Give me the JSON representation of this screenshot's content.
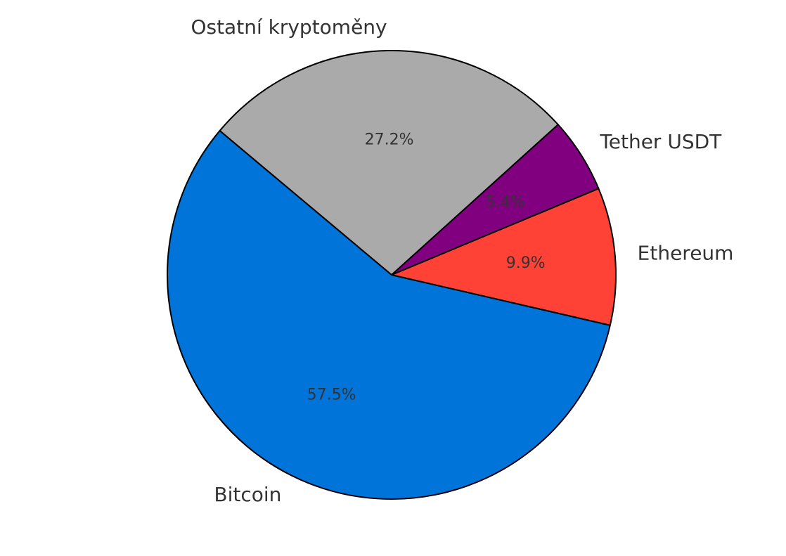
{
  "chart_data": {
    "type": "pie",
    "categories": [
      "Bitcoin",
      "Ethereum",
      "Tether USDT",
      "Ostatní kryptoměny"
    ],
    "values": [
      57.5,
      9.9,
      5.4,
      27.2
    ],
    "value_labels": [
      "57.5%",
      "9.9%",
      "5.4%",
      "27.2%"
    ],
    "colors": [
      "#0074d9",
      "#ff4136",
      "#800080",
      "#aaaaaa"
    ]
  }
}
